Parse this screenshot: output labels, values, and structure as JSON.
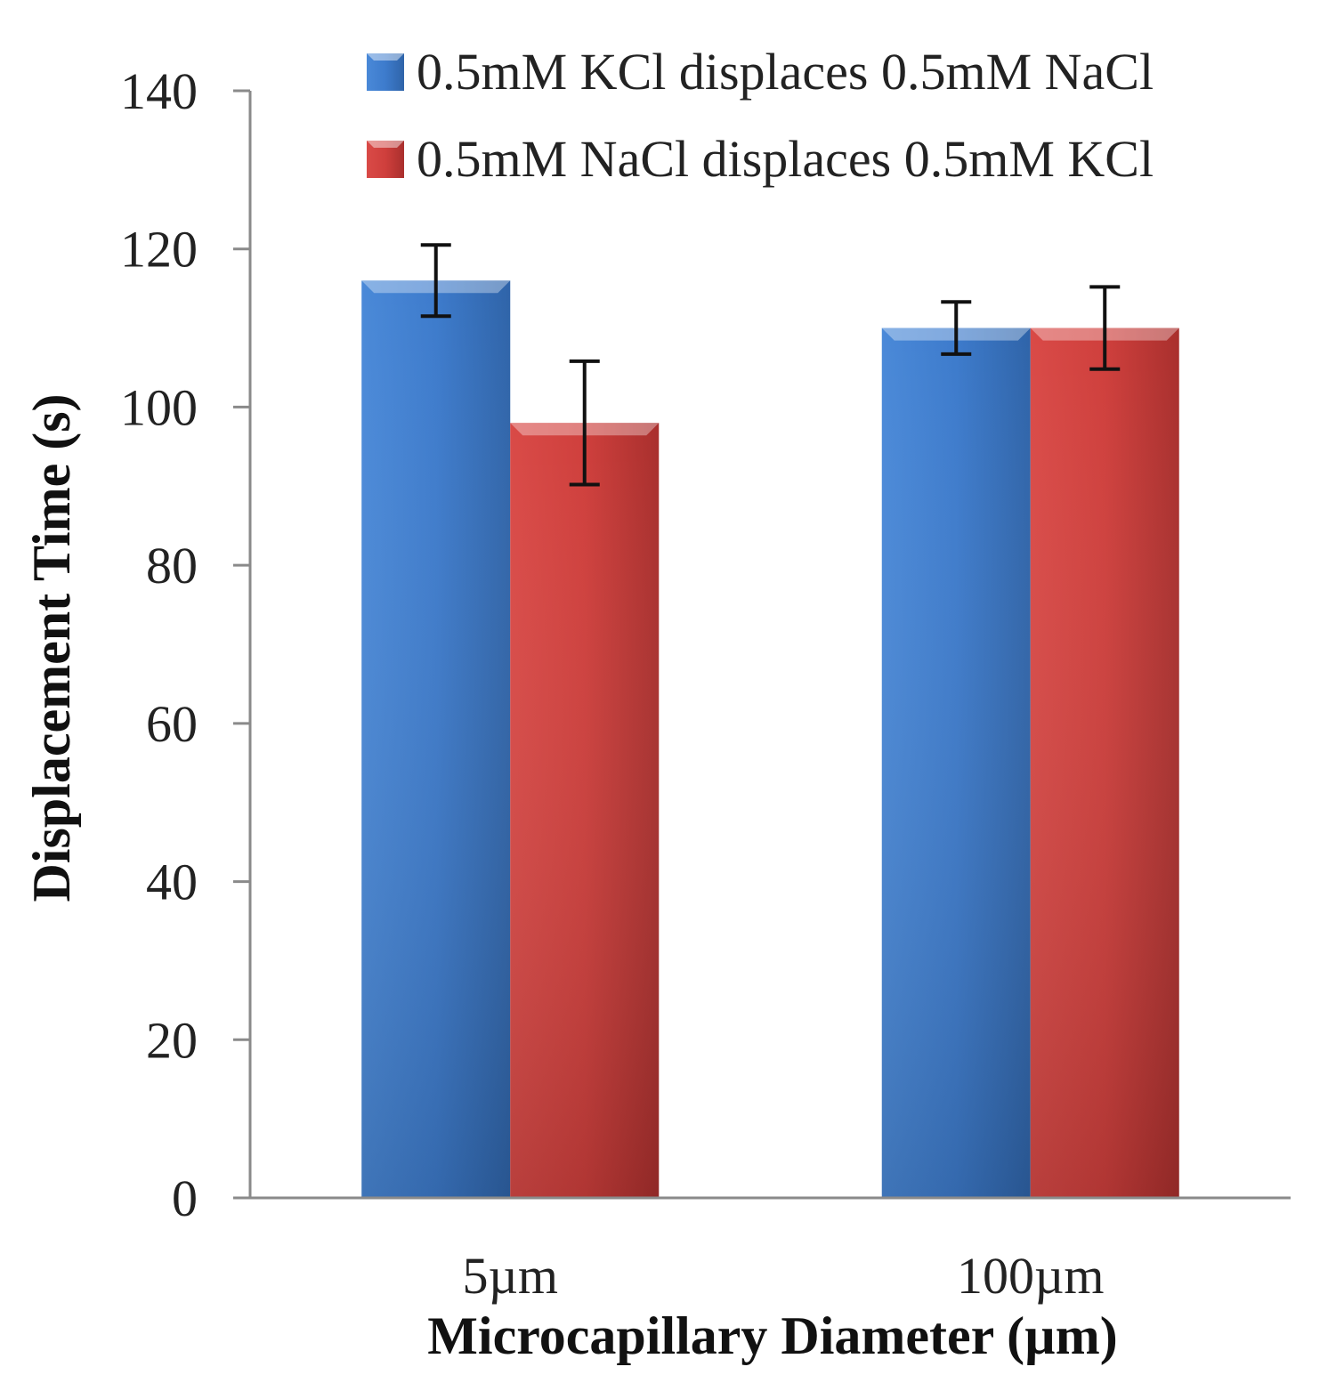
{
  "chart_data": {
    "type": "bar",
    "title": "",
    "categories": [
      "5µm",
      "100µm"
    ],
    "series": [
      {
        "name": "0.5mM KCl displaces 0.5mM NaCl",
        "color": "#3d7bcc",
        "values": [
          116,
          110
        ],
        "errors": [
          4.5,
          3.3
        ]
      },
      {
        "name": "0.5mM NaCl displaces 0.5mM KCl",
        "color": "#cf3f3c",
        "values": [
          98,
          110
        ],
        "errors": [
          7.8,
          5.2
        ]
      }
    ],
    "xlabel": "Microcapillary Diameter (µm)",
    "ylabel": "Displacement Time (s)",
    "ylim": [
      0,
      140
    ],
    "yticks": [
      0,
      20,
      40,
      60,
      80,
      100,
      120,
      140
    ],
    "grid": false,
    "legend_position": "top-right"
  }
}
